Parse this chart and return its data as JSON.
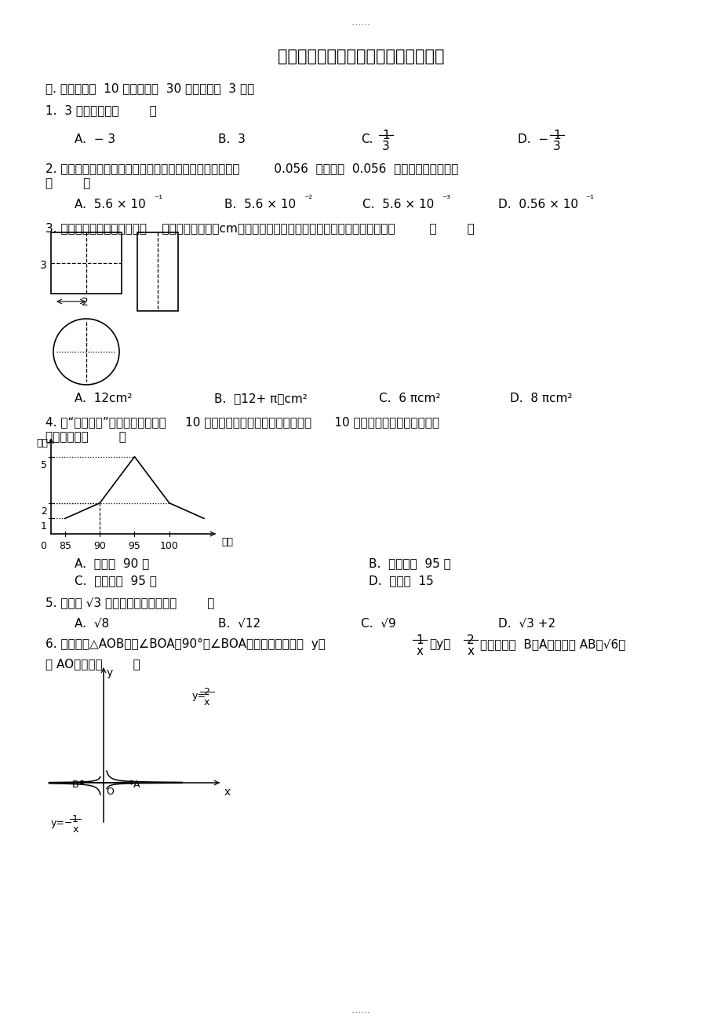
{
  "title": "河南省信阳市商城县中考数学一模试卷",
  "page_marker": "……",
  "section1": "一. 选择题（共  10 小题，满分  30 分，每小题  3 分）",
  "q1": "1.  3 的相反数是（        ）",
  "q2a": "2. 世界上最小的鸟是生活在古巴的吸蜜蜂鸟，它的质量约为         0.056  盎司．将  0.056  用科学记数法表示为",
  "q2b": "（        ）",
  "q3": "3. 如图是一个几何体的三视图    （图中尺寸单位：cm），根据图中所示数据求得这个几何体的侧面积是         （        ）",
  "q3_A": "A.  12cm²",
  "q3_B": "B.  （12+ π）cm²",
  "q3_C": "C.  6 πcm²",
  "q3_D": "D.  8 πcm²",
  "q4a": "4. 在“经典诵读”比赛活动中，某校     10 名学生参赛成绩如图所示，对于这      10 名学生的参赛成绩，下列说",
  "q4b": "法正确的是（        ）",
  "q4_A": "A.  众数是  90 分",
  "q4_B": "B.  中位数是  95 分",
  "q4_C": "C.  平均数是  95 分",
  "q4_D": "D.  方差是  15",
  "q5": "5. 下面与 √3 是同类二次根式的是（        ）",
  "q5_A": "A.  √8",
  "q5_B": "B.  √12",
  "q5_C": "C.  √9",
  "q5_D": "D.  √3 +2",
  "q6a": "6. 如图，在△AOB中，∠BOA＝90°，∠BOA的两边分别与函数  y＝",
  "q6b": "的图象交于  B、A两点，若 AB＝√6，",
  "q6c": "则 AO的值为（        ）",
  "bg_color": "#ffffff"
}
